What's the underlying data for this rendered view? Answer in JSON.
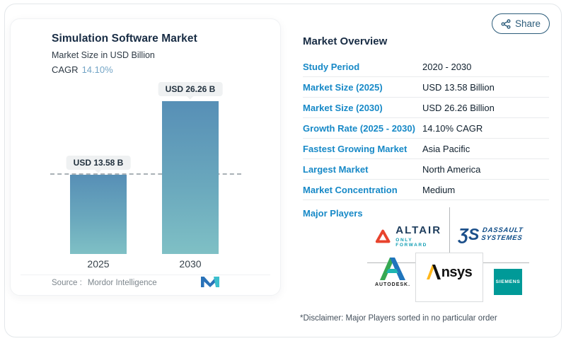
{
  "share": {
    "label": "Share"
  },
  "chart_card": {
    "title": "Simulation Software Market",
    "subtitle": "Market Size in USD Billion",
    "cagr_label": "CAGR",
    "cagr_value": "14.10%",
    "source_label": "Source :",
    "source_value": "Mordor Intelligence"
  },
  "chart_data": {
    "type": "bar",
    "categories": [
      "2025",
      "2030"
    ],
    "values": [
      13.58,
      26.26
    ],
    "value_labels": [
      "USD 13.58 B",
      "USD 26.26 B"
    ],
    "title": "Simulation Software Market",
    "ylabel": "Market Size in USD Billion",
    "baseline_dashed_at": 13.58,
    "bar_gradient": [
      "#578fb6",
      "#7fc0c5"
    ]
  },
  "overview": {
    "title": "Market Overview",
    "rows": [
      {
        "label": "Study Period",
        "value": "2020 - 2030"
      },
      {
        "label": "Market Size (2025)",
        "value": "USD 13.58 Billion"
      },
      {
        "label": "Market Size (2030)",
        "value": "USD 26.26 Billion"
      },
      {
        "label": "Growth Rate (2025 - 2030)",
        "value": "14.10% CAGR"
      },
      {
        "label": "Fastest Growing Market",
        "value": "Asia Pacific"
      },
      {
        "label": "Largest Market",
        "value": "North America"
      },
      {
        "label": "Market Concentration",
        "value": "Medium"
      }
    ],
    "major_players_label": "Major Players",
    "players": [
      "Altair",
      "Dassault Systemes",
      "Autodesk",
      "Ansys",
      "Siemens"
    ],
    "disclaimer": "*Disclaimer: Major Players sorted in no particular order"
  },
  "logos": {
    "altair": {
      "name": "ALTAIR",
      "tagline": "ONLY FORWARD"
    },
    "dassault": {
      "glyph": "ƷS",
      "line1": "DASSAULT",
      "line2": "SYSTEMES"
    },
    "autodesk": {
      "name": "AUTODESK."
    },
    "ansys": {
      "name": "nsys"
    },
    "siemens": {
      "name": "SIEMENS"
    }
  },
  "colors": {
    "label_blue": "#1789c7",
    "title_navy": "#182c44",
    "cagr_blue": "#74a5c6",
    "bar_top": "#578fb6",
    "bar_bottom": "#7fc0c5",
    "share_navy": "#2d5d7b",
    "siemens_teal": "#009a98",
    "altair_red": "#e8432d",
    "altair_teal": "#0f9db3",
    "dassault_blue": "#0b4a86",
    "ansys_gold": "#ffb71b",
    "autodesk_green": "#36a852",
    "autodesk_blue": "#2075bc"
  }
}
